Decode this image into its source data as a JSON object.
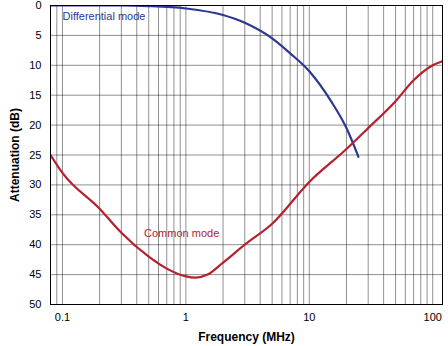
{
  "chart_data": {
    "type": "line",
    "x_label": "Frequency (MHz)",
    "y_label": "Attenuation (dB)",
    "log": "x",
    "grid": true,
    "xlim": [
      0.08,
      120
    ],
    "xticks": [
      0.1,
      1,
      10,
      100
    ],
    "ylim": [
      0,
      50
    ],
    "yticks": [
      0,
      5,
      10,
      15,
      20,
      25,
      30,
      35,
      40,
      45,
      50
    ],
    "series": [
      {
        "name": "Differential mode",
        "color": "#2b3990",
        "x": [
          0.08,
          0.3,
          0.5,
          1,
          2,
          3,
          5,
          7,
          10,
          15,
          20,
          25
        ],
        "values": [
          0,
          0,
          0.1,
          0.5,
          1.6,
          2.9,
          5.5,
          8,
          11,
          16,
          20.5,
          25.3
        ]
      },
      {
        "name": "Common mode",
        "color": "#b5202e",
        "x": [
          0.08,
          0.1,
          0.2,
          0.3,
          0.5,
          0.7,
          1,
          1.2,
          1.5,
          2,
          3,
          5,
          10,
          20,
          30,
          50,
          70,
          100,
          120
        ],
        "values": [
          25,
          28,
          34,
          38,
          42,
          44,
          45.3,
          45.5,
          45,
          43,
          40,
          36.5,
          29.5,
          24,
          20.5,
          16,
          12.5,
          10,
          9.3
        ]
      }
    ]
  }
}
